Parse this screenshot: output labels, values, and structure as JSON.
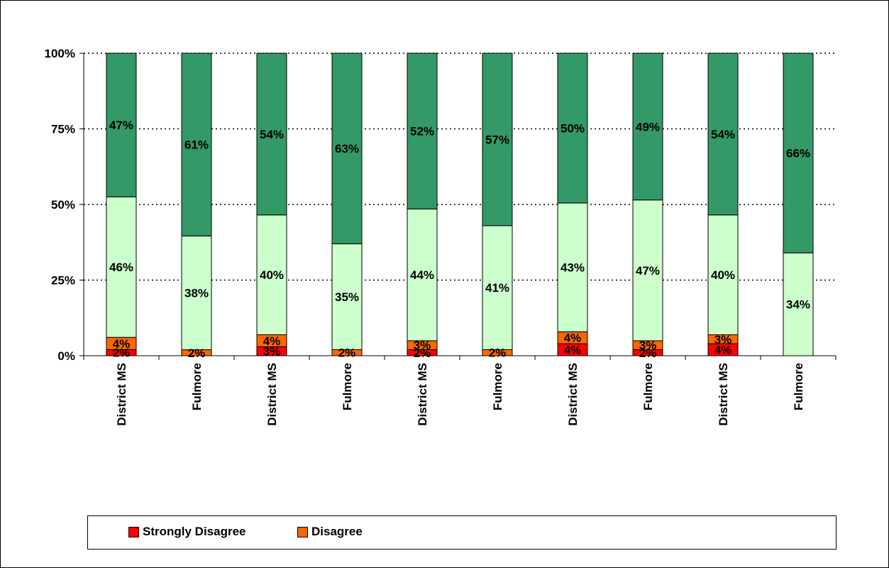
{
  "chart_data": {
    "type": "bar",
    "stacked": true,
    "percent": true,
    "categories": [
      "District MS",
      "Fulmore",
      "District MS",
      "Fulmore",
      "District MS",
      "Fulmore",
      "District MS",
      "Fulmore",
      "District MS",
      "Fulmore"
    ],
    "y_ticks": [
      "0%",
      "25%",
      "50%",
      "75%",
      "100%"
    ],
    "ylim": [
      0,
      100
    ],
    "grid": true,
    "legend_position": "bottom",
    "series": [
      {
        "name": "Strongly Disagree",
        "color": "#ff0000",
        "values": [
          2,
          0,
          3,
          0,
          2,
          0,
          4,
          2,
          4,
          0
        ],
        "labels": [
          "2%",
          "",
          "3%",
          "",
          "2%",
          "",
          "4%",
          "2%",
          "4%",
          ""
        ],
        "in_legend": true
      },
      {
        "name": "Disagree",
        "color": "#ff6600",
        "values": [
          4,
          2,
          4,
          2,
          3,
          2,
          4,
          3,
          3,
          0
        ],
        "labels": [
          "4%",
          "2%",
          "4%",
          "2%",
          "3%",
          "2%",
          "4%",
          "3%",
          "3%",
          ""
        ],
        "in_legend": true
      },
      {
        "name": "",
        "color": "#ccffcc",
        "values": [
          46,
          38,
          40,
          35,
          44,
          41,
          43,
          47,
          40,
          34
        ],
        "labels": [
          "46%",
          "38%",
          "40%",
          "35%",
          "44%",
          "41%",
          "43%",
          "47%",
          "40%",
          "34%"
        ],
        "in_legend": false
      },
      {
        "name": "",
        "color": "#339966",
        "values": [
          47,
          61,
          54,
          63,
          52,
          57,
          50,
          49,
          54,
          66
        ],
        "labels": [
          "47%",
          "61%",
          "54%",
          "63%",
          "52%",
          "57%",
          "50%",
          "49%",
          "54%",
          "66%"
        ],
        "in_legend": false
      }
    ]
  }
}
